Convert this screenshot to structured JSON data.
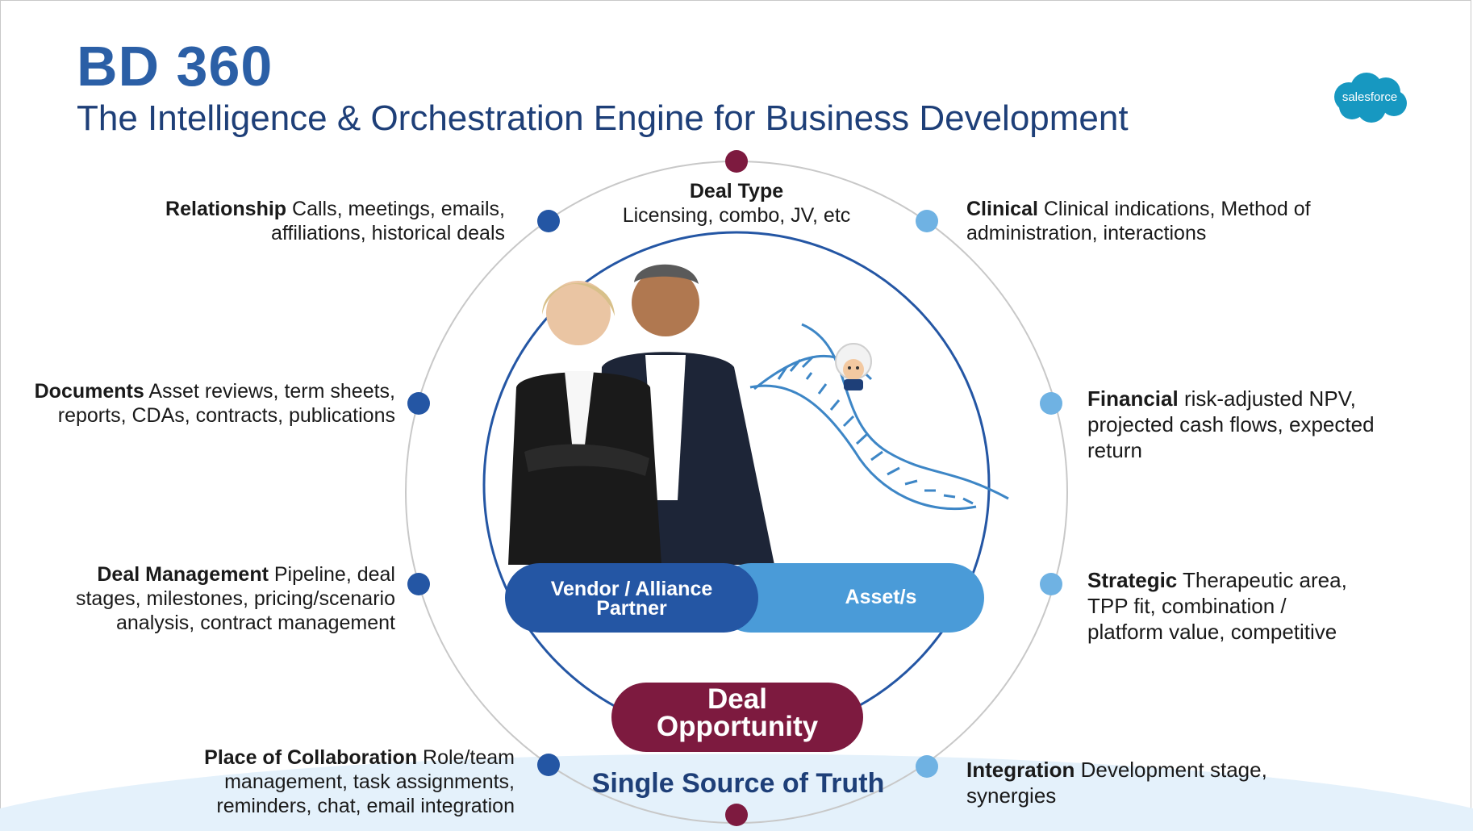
{
  "header": {
    "title": "BD 360",
    "subtitle": "The Intelligence & Orchestration Engine for Business Development"
  },
  "logo": {
    "text": "salesforce",
    "color": "#1798c1"
  },
  "categories": {
    "deal_type": {
      "label": "Deal Type",
      "desc": "Licensing, combo, JV, etc"
    },
    "relationship": {
      "label": "Relationship",
      "desc_1": "Calls, meetings, emails,",
      "desc_2": "affiliations, historical deals"
    },
    "documents": {
      "label": "Documents",
      "desc_1": "Asset reviews, term sheets,",
      "desc_2": "reports, CDAs, contracts, publications"
    },
    "deal_management": {
      "label": "Deal Management",
      "desc_1": "Pipeline, deal",
      "desc_2": "stages, milestones, pricing/scenario",
      "desc_3": "analysis, contract management"
    },
    "collaboration": {
      "label": "Place of Collaboration",
      "desc_1": "Role/team",
      "desc_2": "management, task assignments,",
      "desc_3": "reminders, chat, email integration"
    },
    "clinical": {
      "label": "Clinical",
      "desc_1": "Clinical indications, Method of",
      "desc_2": "administration, interactions"
    },
    "financial": {
      "label": "Financial",
      "desc_1": "risk-adjusted NPV,",
      "desc_2": "projected cash flows, expected",
      "desc_3": "return"
    },
    "strategic": {
      "label": "Strategic",
      "desc_1": "Therapeutic area,",
      "desc_2": "TPP fit, combination /",
      "desc_3": "platform value, competitive"
    },
    "integration": {
      "label": "Integration",
      "desc_1": "Development stage,",
      "desc_2": "synergies"
    }
  },
  "center": {
    "vendor_line1": "Vendor / Alliance",
    "vendor_line2": "Partner",
    "asset": "Asset/s",
    "deal_line1": "Deal",
    "deal_line2": "Opportunity",
    "truth": "Single Source of Truth"
  },
  "colors": {
    "title": "#2b5fa6",
    "subtitle": "#1e3f78",
    "dark_blue": "#2456a4",
    "light_blue": "#6fb2e3",
    "maroon": "#7d1a3f",
    "vendor_pill": "#2456a4",
    "asset_pill": "#4a9bd8"
  }
}
